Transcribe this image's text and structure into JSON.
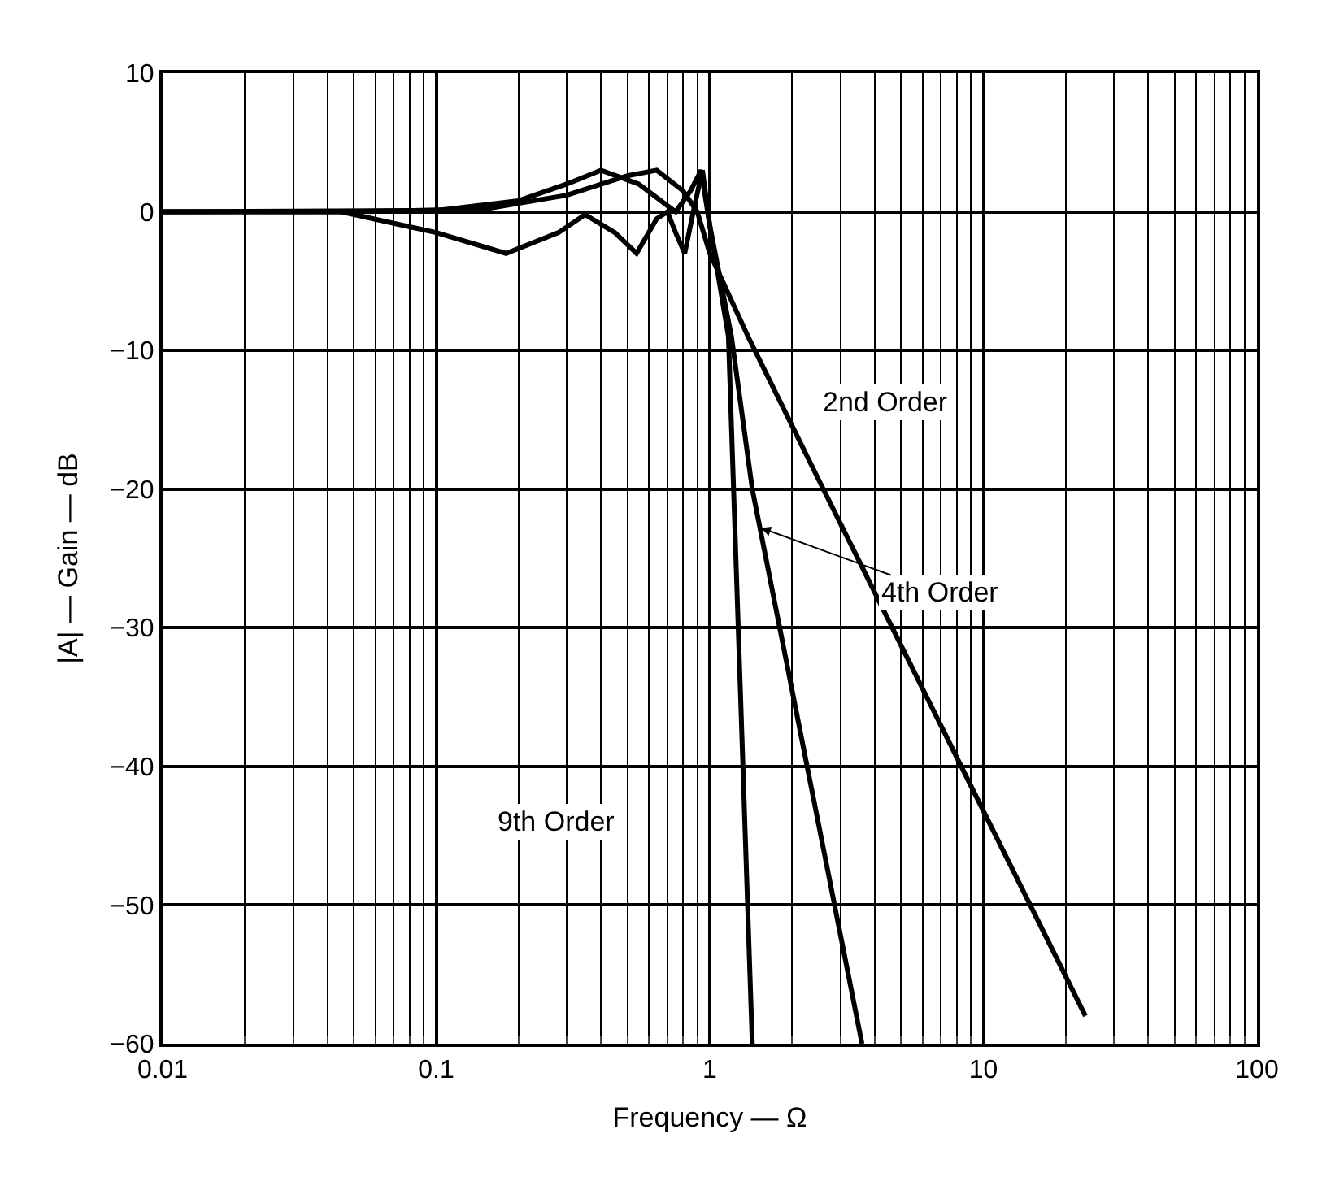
{
  "chart_data": {
    "type": "line",
    "xlabel": "Frequency — Ω",
    "ylabel": "|A| — Gain — dB",
    "log": "x",
    "grid": true,
    "marker": "none",
    "line_style": "solid",
    "xlim": [
      0.01,
      100
    ],
    "xticks": [
      0.01,
      0.1,
      1,
      10,
      100
    ],
    "ylim": [
      -60,
      10
    ],
    "yticks": [
      10,
      0,
      -10,
      -20,
      -30,
      -40,
      -50,
      -60
    ],
    "series": [
      {
        "color": "#000000",
        "x": [
          0.01,
          0.05,
          0.15,
          0.3,
          0.5,
          0.64,
          0.8,
          0.9,
          1.0,
          1.38,
          2.6,
          23.6
        ],
        "values": [
          0,
          0,
          0.2,
          1.2,
          2.6,
          3,
          1.5,
          0,
          -3,
          -9,
          -20,
          -58
        ]
      },
      {
        "color": "#000000",
        "x": [
          0.01,
          0.1,
          0.2,
          0.3,
          0.4,
          0.55,
          0.75,
          0.85,
          0.93,
          1.0,
          1.2,
          1.43,
          3.6
        ],
        "values": [
          0,
          0.1,
          0.8,
          2,
          3,
          2,
          0,
          1.5,
          3,
          -1,
          -9,
          -20,
          -60
        ]
      },
      {
        "color": "#000000",
        "x": [
          0.01,
          0.045,
          0.1,
          0.18,
          0.28,
          0.35,
          0.45,
          0.54,
          0.64,
          0.7,
          0.75,
          0.81,
          0.87,
          0.94,
          1.0,
          1.17,
          1.43
        ],
        "values": [
          0,
          0,
          -1.5,
          -3,
          -1.5,
          -0.2,
          -1.5,
          -3,
          -0.5,
          0,
          -1.5,
          -3,
          0,
          3,
          -1,
          -9,
          -60
        ]
      }
    ],
    "annotations": [
      "2nd Order",
      {
        "text": "4th Order",
        "x": 1.54,
        "y": -22.8
      },
      "9th Order"
    ]
  }
}
